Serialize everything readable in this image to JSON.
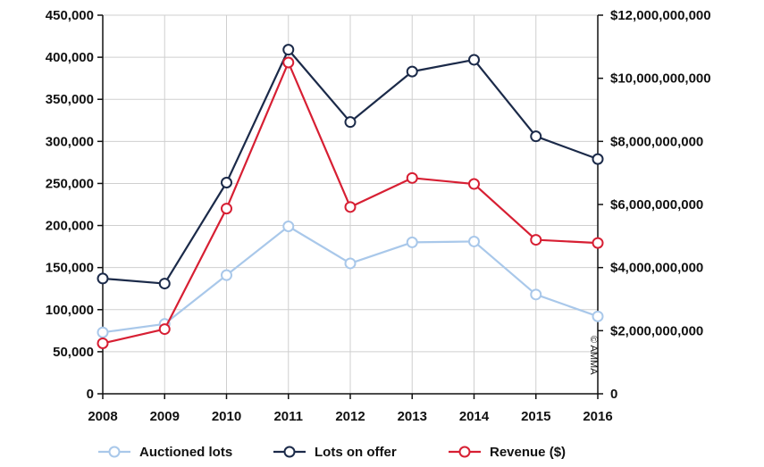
{
  "chart_data": {
    "type": "line",
    "x": [
      "2008",
      "2009",
      "2010",
      "2011",
      "2012",
      "2013",
      "2014",
      "2015",
      "2016"
    ],
    "y_left": {
      "ylim": [
        0,
        450000
      ],
      "ticks": [
        0,
        50000,
        100000,
        150000,
        200000,
        250000,
        300000,
        350000,
        400000,
        450000
      ],
      "tick_labels": [
        "0",
        "50,000",
        "100,000",
        "150,000",
        "200,000",
        "250,000",
        "300,000",
        "350,000",
        "400,000",
        "450,000"
      ]
    },
    "y_right": {
      "ylim": [
        0,
        12000000000
      ],
      "ticks": [
        0,
        2000000000,
        4000000000,
        6000000000,
        8000000000,
        10000000000,
        12000000000
      ],
      "tick_labels": [
        "0",
        "$2,000,000,000",
        "$4,000,000,000",
        "$6,000,000,000",
        "$8,000,000,000",
        "$10,000,000,000",
        "$12,000,000,000"
      ]
    },
    "grid": true,
    "legend_position": "bottom",
    "series": [
      {
        "name": "Auctioned lots",
        "axis": "left",
        "color": "#a9c8ea",
        "values": [
          73000,
          83000,
          141000,
          199000,
          155000,
          180000,
          181000,
          118000,
          92000
        ]
      },
      {
        "name": "Lots on offer",
        "axis": "left",
        "color": "#1b2a49",
        "values": [
          137000,
          131000,
          251000,
          409000,
          323000,
          383000,
          397000,
          306000,
          279000
        ]
      },
      {
        "name": "Revenue ($)",
        "axis": "right",
        "color": "#d71f33",
        "values": [
          1600000000,
          2050000000,
          5870000000,
          10500000000,
          5920000000,
          6840000000,
          6650000000,
          4880000000,
          4780000000
        ]
      }
    ],
    "watermark": "© AMMA"
  }
}
